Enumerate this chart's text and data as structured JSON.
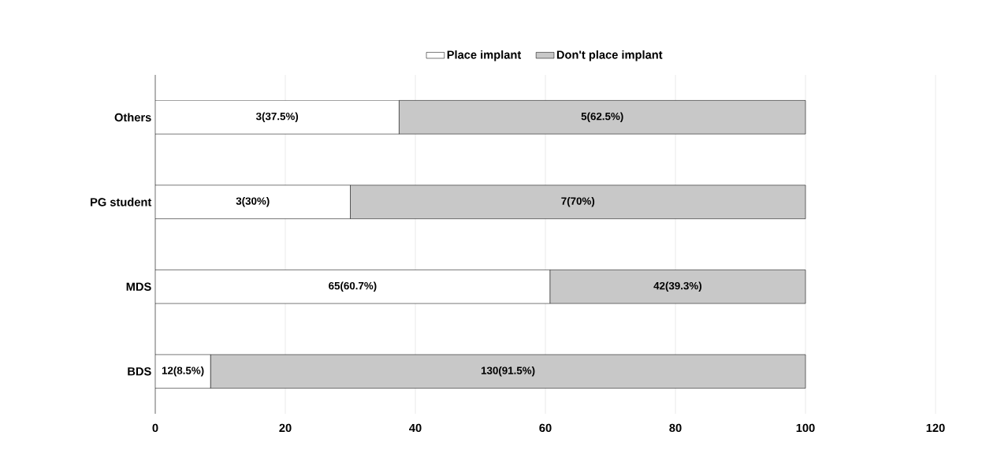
{
  "chart_data": {
    "type": "bar",
    "orientation": "horizontal",
    "stacked": true,
    "categories": [
      "Others",
      "PG student",
      "MDS",
      "BDS"
    ],
    "series": [
      {
        "name": "Place implant",
        "color": "#ffffff",
        "values": [
          37.5,
          30,
          60.7,
          8.5
        ],
        "value_labels": [
          "3(37.5%)",
          "3(30%)",
          "65(60.7%)",
          "12(8.5%)"
        ]
      },
      {
        "name": "Don't place implant",
        "color": "#c8c8c8",
        "values": [
          62.5,
          70,
          39.3,
          91.5
        ],
        "value_labels": [
          "5(62.5%)",
          "7(70%)",
          "42(39.3%)",
          "130(91.5%)"
        ]
      }
    ],
    "xlim": [
      0,
      120
    ],
    "xticks": [
      0,
      20,
      40,
      60,
      80,
      100,
      120
    ],
    "grid": "x",
    "legend": "top"
  }
}
